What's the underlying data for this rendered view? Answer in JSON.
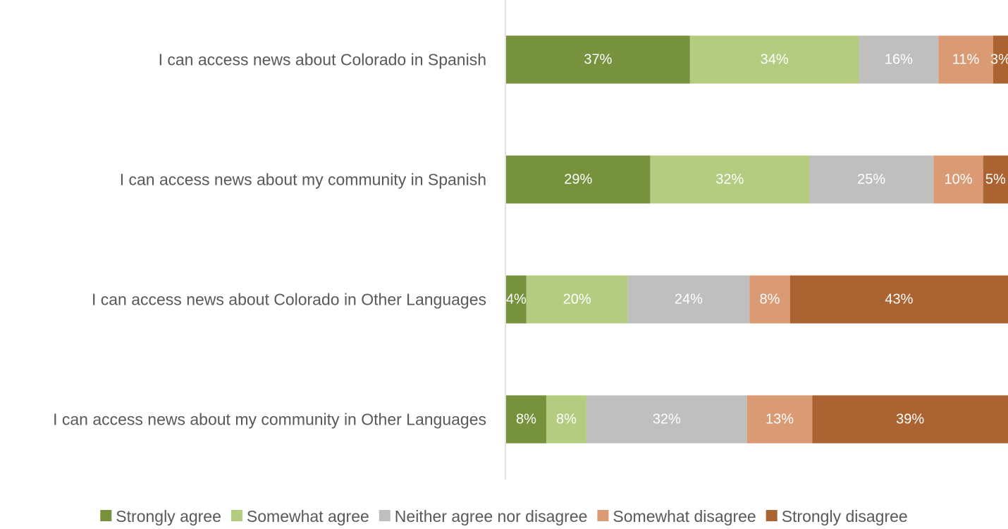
{
  "chart_data": {
    "type": "bar",
    "orientation": "horizontal",
    "stacked": "100%",
    "categories": [
      "I can access news about Colorado in Spanish",
      "I can access news about my community in Spanish",
      "I can access news about Colorado in Other Languages",
      "I can access news about my community in Other Languages"
    ],
    "series": [
      {
        "name": "Strongly agree",
        "color": "#76923C",
        "values": [
          37,
          29,
          4,
          8
        ],
        "labels": [
          "37%",
          "29%",
          "4%",
          "8%"
        ]
      },
      {
        "name": "Somewhat agree",
        "color": "#B3CC80",
        "values": [
          34,
          32,
          20,
          8
        ],
        "labels": [
          "34%",
          "32%",
          "20%",
          "8%"
        ]
      },
      {
        "name": "Neither agree nor disagree",
        "color": "#BFBFBF",
        "values": [
          16,
          25,
          24,
          32
        ],
        "labels": [
          "16%",
          "25%",
          "24%",
          "32%"
        ]
      },
      {
        "name": "Somewhat disagree",
        "color": "#DA9B74",
        "values": [
          11,
          10,
          8,
          13
        ],
        "labels": [
          "11%",
          "10%",
          "8%",
          "13%"
        ]
      },
      {
        "name": "Strongly disagree",
        "color": "#AB6331",
        "values": [
          3,
          5,
          43,
          39
        ],
        "labels": [
          "3%",
          "5%",
          "43%",
          "39%"
        ]
      }
    ],
    "legend": "bottom",
    "grid": false,
    "axis_line_color": "#D9D9D9"
  }
}
